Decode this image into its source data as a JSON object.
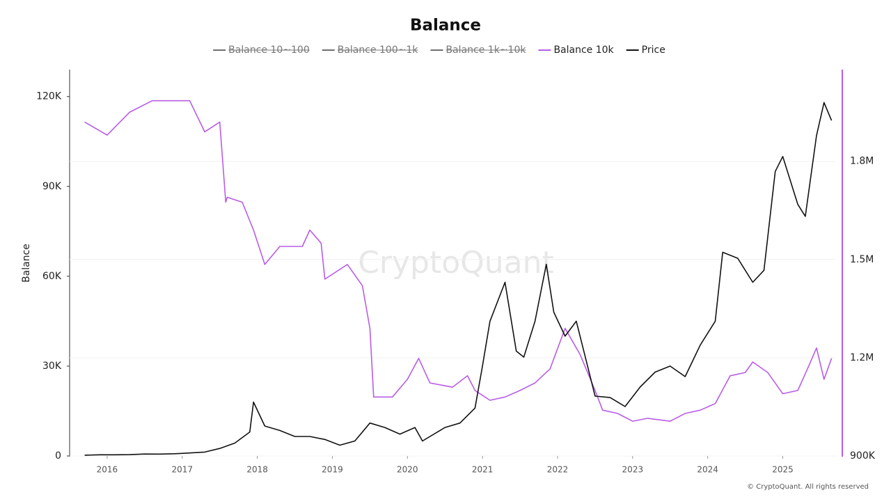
{
  "chart_data": {
    "type": "line",
    "title": "Balance",
    "y_axis_label": "Balance",
    "watermark": "CryptoQuant",
    "footer": "© CryptoQuant. All rights reserved",
    "xlim": [
      2015.5,
      2025.7
    ],
    "xticks": [
      2016,
      2017,
      2018,
      2019,
      2020,
      2021,
      2022,
      2023,
      2024,
      2025
    ],
    "ylim": [
      0,
      129000
    ],
    "yticks": [
      0,
      {
        "value": 30000,
        "label": "30K"
      },
      {
        "value": 60000,
        "label": "60K"
      },
      {
        "value": 90000,
        "label": "90K"
      },
      {
        "value": 120000,
        "label": "120K"
      }
    ],
    "y2lim": [
      900000,
      2080000
    ],
    "y2ticks": [
      {
        "value": 900000,
        "label": "900K"
      },
      {
        "value": 1200000,
        "label": "1.2M"
      },
      {
        "value": 1500000,
        "label": "1.5M"
      },
      {
        "value": 1800000,
        "label": "1.8M"
      }
    ],
    "grid": true,
    "series": [
      {
        "name": "Balance 10~100",
        "color": "#6e6e6e",
        "hidden": true
      },
      {
        "name": "Balance 100~1k",
        "color": "#6e6e6e",
        "hidden": true
      },
      {
        "name": "Balance 1k~10k",
        "color": "#6e6e6e",
        "hidden": true
      },
      {
        "name": "Balance 10k",
        "color": "#b95ce6",
        "axis": "y2",
        "x": [
          2015.7,
          2016.0,
          2016.3,
          2016.6,
          2016.9,
          2017.1,
          2017.3,
          2017.5,
          2017.58,
          2017.6,
          2017.8,
          2017.95,
          2018.1,
          2018.3,
          2018.6,
          2018.7,
          2018.85,
          2018.9,
          2019.2,
          2019.4,
          2019.5,
          2019.55,
          2019.8,
          2020.0,
          2020.15,
          2020.3,
          2020.6,
          2020.8,
          2020.9,
          2021.1,
          2021.3,
          2021.5,
          2021.7,
          2021.9,
          2022.1,
          2022.3,
          2022.5,
          2022.6,
          2022.8,
          2023.0,
          2023.2,
          2023.5,
          2023.7,
          2023.9,
          2024.1,
          2024.3,
          2024.5,
          2024.6,
          2024.8,
          2025.0,
          2025.2,
          2025.35,
          2025.45,
          2025.55,
          2025.65
        ],
        "values": [
          1920000,
          1880000,
          1950000,
          1985000,
          1985000,
          1985000,
          1890000,
          1920000,
          1675000,
          1690000,
          1675000,
          1590000,
          1485000,
          1540000,
          1540000,
          1590000,
          1550000,
          1440000,
          1485000,
          1420000,
          1290000,
          1080000,
          1080000,
          1134000,
          1198000,
          1123000,
          1110000,
          1145000,
          1100000,
          1070000,
          1080000,
          1100000,
          1123000,
          1166000,
          1290000,
          1210000,
          1100000,
          1040000,
          1030000,
          1006000,
          1015000,
          1006000,
          1030000,
          1040000,
          1060000,
          1145000,
          1155000,
          1187000,
          1155000,
          1090000,
          1100000,
          1177000,
          1230000,
          1134000,
          1198000
        ]
      },
      {
        "name": "Price",
        "color": "#111111",
        "x": [
          2015.7,
          2015.9,
          2016.1,
          2016.3,
          2016.5,
          2016.7,
          2016.9,
          2017.1,
          2017.3,
          2017.5,
          2017.7,
          2017.9,
          2017.95,
          2018.1,
          2018.3,
          2018.5,
          2018.7,
          2018.9,
          2019.1,
          2019.3,
          2019.5,
          2019.7,
          2019.9,
          2020.1,
          2020.2,
          2020.5,
          2020.7,
          2020.9,
          2021.0,
          2021.1,
          2021.3,
          2021.45,
          2021.55,
          2021.7,
          2021.85,
          2021.95,
          2022.1,
          2022.25,
          2022.4,
          2022.5,
          2022.7,
          2022.9,
          2023.1,
          2023.3,
          2023.5,
          2023.7,
          2023.9,
          2024.1,
          2024.2,
          2024.4,
          2024.6,
          2024.75,
          2024.9,
          2025.0,
          2025.2,
          2025.3,
          2025.45,
          2025.55,
          2025.65
        ],
        "values": [
          250,
          400,
          400,
          450,
          650,
          620,
          750,
          1000,
          1300,
          2500,
          4300,
          8000,
          18000,
          10000,
          8500,
          6500,
          6500,
          5500,
          3600,
          5000,
          11000,
          9500,
          7300,
          9500,
          5000,
          9500,
          11000,
          16000,
          30000,
          45000,
          58000,
          35000,
          33000,
          45000,
          64000,
          48000,
          40000,
          45000,
          30000,
          20000,
          19500,
          16500,
          23000,
          28000,
          30000,
          26500,
          37000,
          45000,
          68000,
          66000,
          58000,
          62000,
          95000,
          100000,
          84000,
          80000,
          107000,
          118000,
          112000
        ]
      }
    ]
  }
}
